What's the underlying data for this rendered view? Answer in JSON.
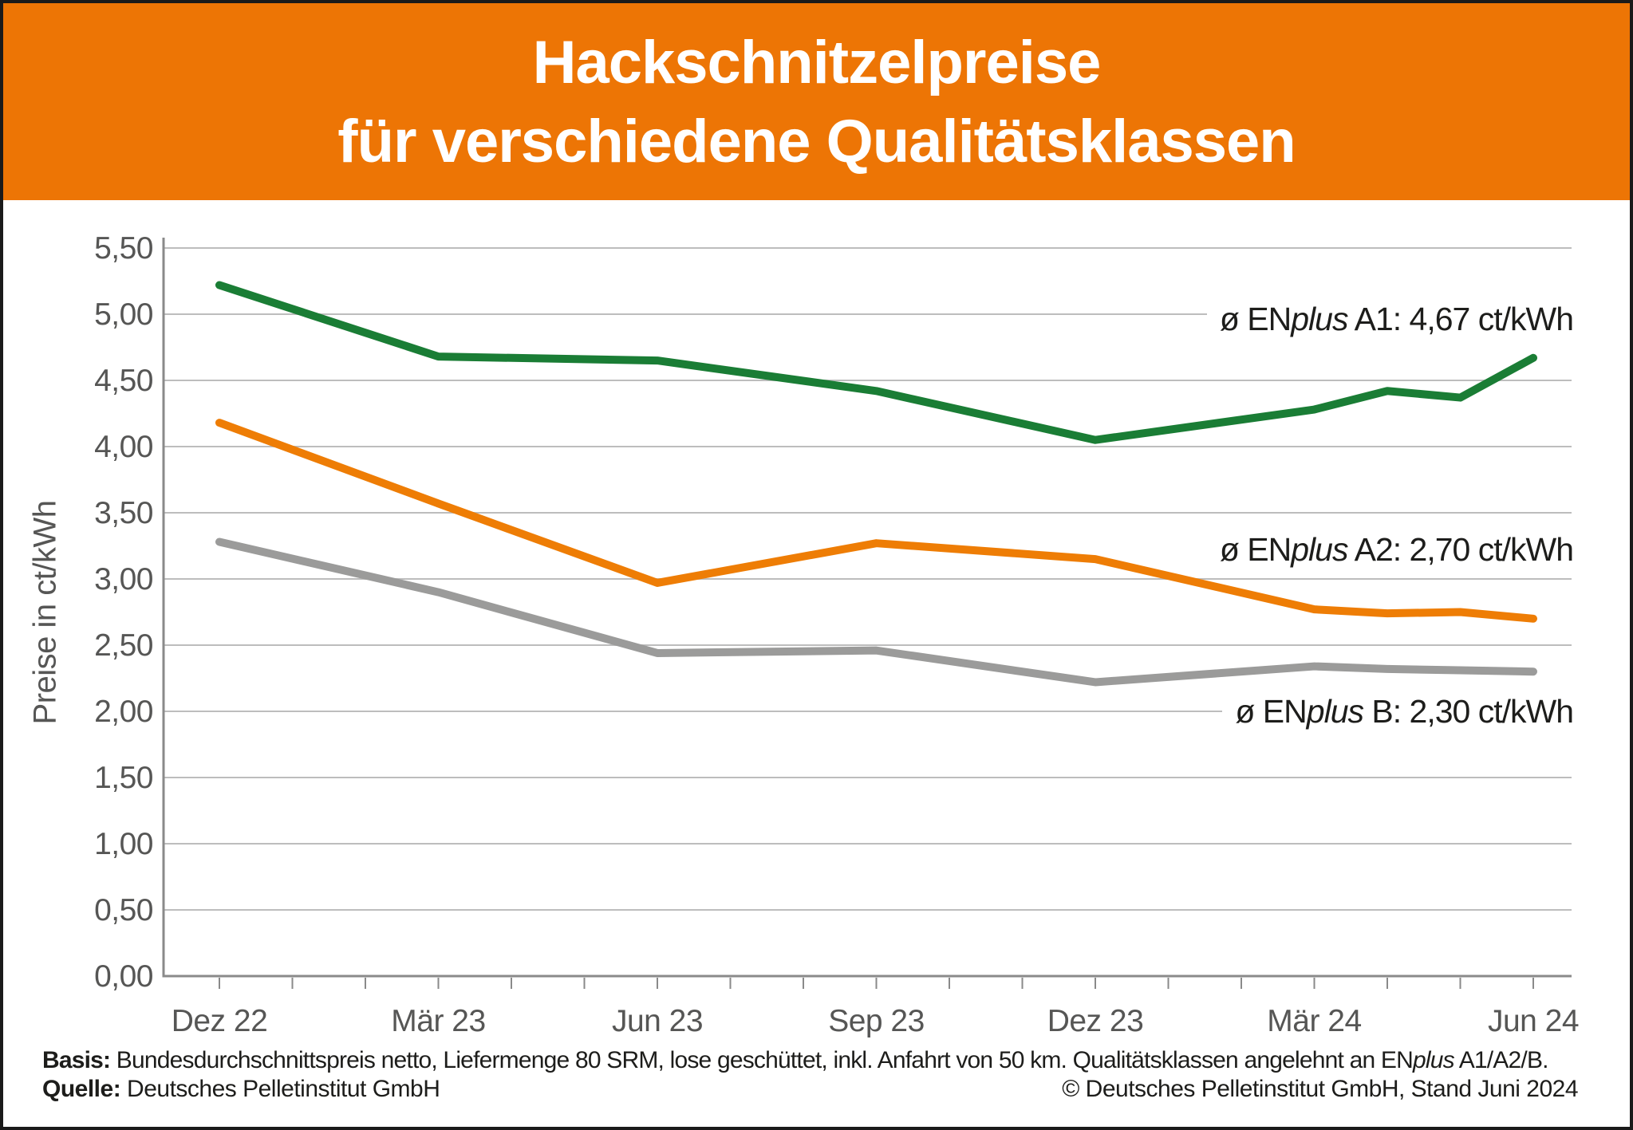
{
  "header": {
    "title_line1": "Hackschnitzelpreise",
    "title_line2": "für verschiedene Qualitätsklassen",
    "background_color": "#ed7505",
    "text_color": "#ffffff"
  },
  "chart_data": {
    "type": "line",
    "title": "Hackschnitzelpreise für verschiedene Qualitätsklassen",
    "xlabel": "",
    "ylabel": "Preise in ct/kWh",
    "ylim": [
      0,
      5.5
    ],
    "ytick_step": 0.5,
    "ytick_labels": [
      "0,00",
      "0,50",
      "1,00",
      "1,50",
      "2,00",
      "2,50",
      "3,00",
      "3,50",
      "4,00",
      "4,50",
      "5,00",
      "5,50"
    ],
    "grid": "horizontal",
    "legend_position": "inline-right",
    "x_months_span": 18,
    "xticks_monthly": true,
    "xtick_label_months": [
      0,
      3,
      6,
      9,
      12,
      15,
      18
    ],
    "xtick_labels": [
      "Dez 22",
      "Mär 23",
      "Jun 23",
      "Sep 23",
      "Dez 23",
      "Mär 24",
      "Jun 24"
    ],
    "series": [
      {
        "name": "ENplus A1",
        "color": "#1a7d35",
        "label_prefix": "ø EN",
        "label_italic": "plus",
        "label_suffix": " A1: 4,67 ct/kWh",
        "current_value": "4,67 ct/kWh",
        "months": [
          0,
          3,
          6,
          9,
          12,
          15,
          16,
          17,
          18
        ],
        "values": [
          5.22,
          4.68,
          4.65,
          4.42,
          4.05,
          4.28,
          4.42,
          4.37,
          4.67
        ]
      },
      {
        "name": "ENplus A2",
        "color": "#ee7d05",
        "label_prefix": "ø EN",
        "label_italic": "plus",
        "label_suffix": " A2: 2,70 ct/kWh",
        "current_value": "2,70 ct/kWh",
        "months": [
          0,
          3,
          6,
          9,
          12,
          15,
          16,
          17,
          18
        ],
        "values": [
          4.18,
          3.57,
          2.97,
          3.27,
          3.15,
          2.77,
          2.74,
          2.75,
          2.7
        ]
      },
      {
        "name": "ENplus B",
        "color": "#9b9b9a",
        "label_prefix": "ø EN",
        "label_italic": "plus",
        "label_suffix": " B: 2,30 ct/kWh",
        "current_value": "2,30 ct/kWh",
        "months": [
          0,
          3,
          6,
          9,
          12,
          15,
          16,
          17,
          18
        ],
        "values": [
          3.28,
          2.9,
          2.44,
          2.46,
          2.22,
          2.34,
          2.32,
          2.31,
          2.3
        ]
      }
    ]
  },
  "footer": {
    "basis_label": "Basis:",
    "basis_text_before_italic": " Bundesdurchschnittspreis netto, Liefermenge 80 SRM, lose geschüttet, inkl. Anfahrt von 50 km. Qualitätsklassen angelehnt an EN",
    "basis_italic": "plus",
    "basis_text_after_italic": " A1/A2/B.",
    "quelle_label": "Quelle:",
    "quelle_text": " Deutsches Pelletinstitut GmbH",
    "copyright": "© Deutsches Pelletinstitut GmbH, Stand Juni 2024"
  }
}
